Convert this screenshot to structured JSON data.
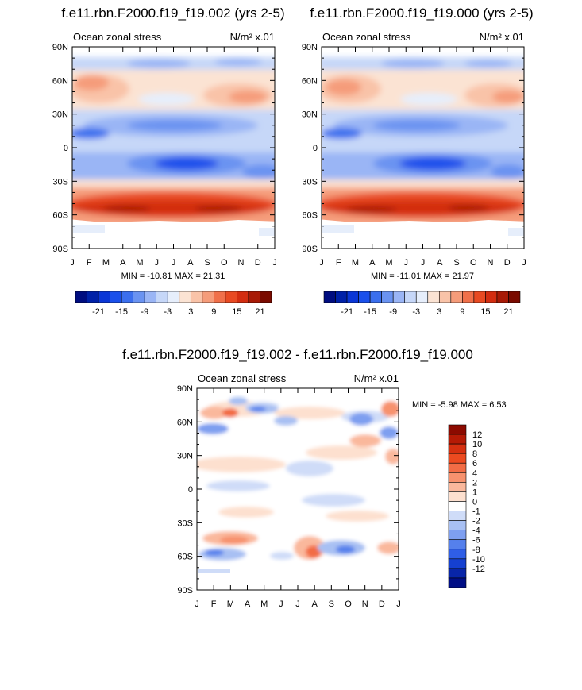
{
  "chart_data": [
    {
      "type": "heatmap",
      "id": "p1",
      "title": "f.e11.rbn.F2000.f19_f19.002 (yrs 2-5)",
      "left_label": "Ocean zonal stress",
      "right_label": "N/m² x.01",
      "xlabels": [
        "J",
        "F",
        "M",
        "A",
        "M",
        "J",
        "J",
        "A",
        "S",
        "O",
        "N",
        "D",
        "J"
      ],
      "ylabels": [
        "90N",
        "60N",
        "30N",
        "0",
        "30S",
        "60S",
        "90S"
      ],
      "ylim": [
        -90,
        90
      ],
      "stats": "MIN = -10.81 MAX =  21.31",
      "colorbar": {
        "orientation": "horizontal",
        "labels": [
          "-21",
          "-15",
          "-9",
          "-3",
          "3",
          "9",
          "15",
          "21"
        ],
        "colors": [
          "#000d80",
          "#0021a8",
          "#0a36d6",
          "#1a50eb",
          "#3b6fee",
          "#6a93f1",
          "#9ab5f5",
          "#c6d7f8",
          "#e6eefb",
          "#fbe3d3",
          "#f9c3a8",
          "#f59c7a",
          "#f0704a",
          "#e84a22",
          "#d32d10",
          "#a81a06",
          "#7a0b00"
        ]
      }
    },
    {
      "type": "heatmap",
      "id": "p2",
      "title": "f.e11.rbn.F2000.f19_f19.000 (yrs 2-5)",
      "left_label": "Ocean zonal stress",
      "right_label": "N/m² x.01",
      "xlabels": [
        "J",
        "F",
        "M",
        "A",
        "M",
        "J",
        "J",
        "A",
        "S",
        "O",
        "N",
        "D",
        "J"
      ],
      "ylabels": [
        "90N",
        "60N",
        "30N",
        "0",
        "30S",
        "60S",
        "90S"
      ],
      "ylim": [
        -90,
        90
      ],
      "stats": "MIN = -11.01 MAX =  21.97",
      "colorbar": {
        "orientation": "horizontal",
        "labels": [
          "-21",
          "-15",
          "-9",
          "-3",
          "3",
          "9",
          "15",
          "21"
        ],
        "colors": [
          "#000d80",
          "#0021a8",
          "#0a36d6",
          "#1a50eb",
          "#3b6fee",
          "#6a93f1",
          "#9ab5f5",
          "#c6d7f8",
          "#e6eefb",
          "#fbe3d3",
          "#f9c3a8",
          "#f59c7a",
          "#f0704a",
          "#e84a22",
          "#d32d10",
          "#a81a06",
          "#7a0b00"
        ]
      }
    },
    {
      "type": "heatmap",
      "id": "p3",
      "title": "f.e11.rbn.F2000.f19_f19.002 - f.e11.rbn.F2000.f19_f19.000",
      "left_label": "Ocean zonal stress",
      "right_label": "N/m² x.01",
      "xlabels": [
        "J",
        "F",
        "M",
        "A",
        "M",
        "J",
        "J",
        "A",
        "S",
        "O",
        "N",
        "D",
        "J"
      ],
      "ylabels": [
        "90N",
        "60N",
        "30N",
        "0",
        "30S",
        "60S",
        "90S"
      ],
      "ylim": [
        -90,
        90
      ],
      "stats": "MIN =  -5.98 MAX =   6.53",
      "colorbar": {
        "orientation": "vertical",
        "labels": [
          "12",
          "10",
          "8",
          "6",
          "4",
          "2",
          "1",
          "0",
          "-1",
          "-2",
          "-4",
          "-6",
          "-8",
          "-10",
          "-12"
        ],
        "colors": [
          "#8c0a00",
          "#b51a05",
          "#d63010",
          "#ec4a20",
          "#f26c45",
          "#f7926e",
          "#fab89c",
          "#fde0cf",
          "#ffffff",
          "#cfdcf8",
          "#a8c0f3",
          "#7e9ff0",
          "#5580ec",
          "#2f5ee6",
          "#1540d0",
          "#0825a8",
          "#000e85"
        ]
      }
    }
  ]
}
